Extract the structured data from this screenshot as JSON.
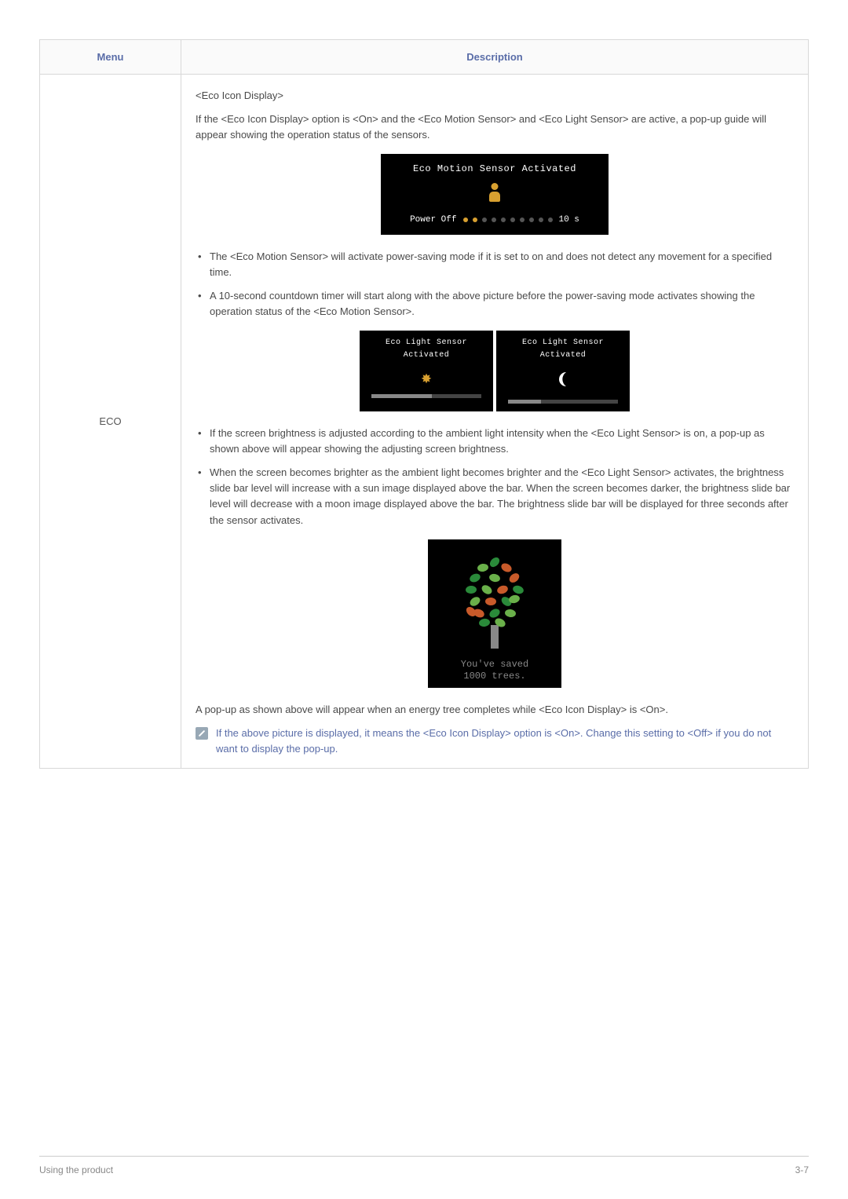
{
  "table": {
    "headers": {
      "menu": "Menu",
      "description": "Description"
    },
    "menuCell": "ECO"
  },
  "content": {
    "heading": "<Eco Icon Display>",
    "intro": "If the <Eco Icon Display> option is <On> and the <Eco Motion Sensor> and <Eco Light Sensor> are active, a pop-up guide will appear showing the operation status of the sensors.",
    "popup1": {
      "title": "Eco Motion Sensor Activated",
      "leftLabel": "Power Off",
      "rightLabel": "10 s",
      "activeDots": 2,
      "totalDots": 10
    },
    "bullets1": [
      "The <Eco Motion Sensor> will activate power-saving mode if it is set to on and does not detect any movement for a specified time.",
      "A 10-second countdown timer will start along with the above picture before the power-saving mode activates showing the operation status of the <Eco Motion Sensor>."
    ],
    "popup2": {
      "leftTitle": "Eco Light Sensor Activated",
      "rightTitle": "Eco Light Sensor Activated",
      "leftFillPct": 55,
      "rightFillPct": 30
    },
    "bullets2": [
      "If the screen brightness is adjusted according to the ambient light intensity when the <Eco Light Sensor> is on, a pop-up as shown above will appear showing the adjusting screen brightness.",
      "When the screen becomes brighter as the ambient light becomes brighter and the <Eco Light Sensor> activates, the brightness slide bar level will increase with a sun image displayed above the bar. When the screen becomes darker, the brightness slide bar level will decrease with a moon image displayed above the bar. The brightness slide bar will be displayed for three seconds after the sensor activates."
    ],
    "treePopup": {
      "line1": "You've saved",
      "line2": "1000 trees."
    },
    "afterTree": "A pop-up as shown above will appear when an energy tree completes while <Eco Icon Display> is <On>.",
    "note": "If the above picture is displayed, it means the <Eco Icon Display> option is <On>. Change this setting to <Off> if you do not want to display the pop-up."
  },
  "colors": {
    "accent": "#d8a030",
    "leaf1": "#2a8a3a",
    "leaf2": "#6ab04a",
    "leaf3": "#c85a2a",
    "trunk": "#888888"
  },
  "footer": {
    "left": "Using the product",
    "right": "3-7"
  }
}
